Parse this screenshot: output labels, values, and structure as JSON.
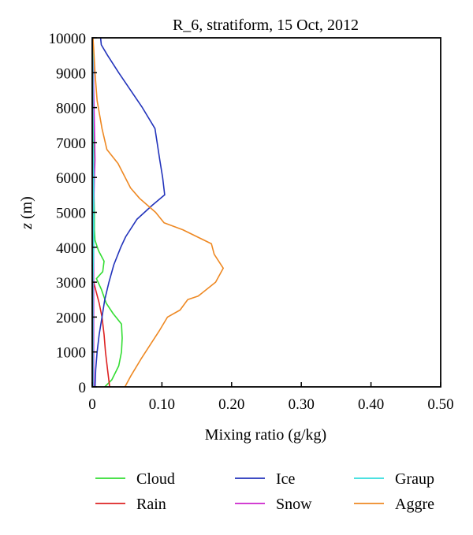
{
  "chart_data": {
    "type": "line",
    "title": "R_6, stratiform, 15 Oct, 2012",
    "xlabel": "Mixing ratio (g/kg)",
    "ylabel_italic": "z",
    "ylabel_rest": " (m)",
    "xlim": [
      0,
      0.5
    ],
    "ylim": [
      0,
      10000
    ],
    "x_ticks": [
      "0",
      "0.10",
      "0.20",
      "0.30",
      "0.40",
      "0.50"
    ],
    "y_ticks": [
      "0",
      "1000",
      "2000",
      "3000",
      "4000",
      "5000",
      "6000",
      "7000",
      "8000",
      "9000",
      "10000"
    ],
    "grid": false,
    "legend_position": "bottom",
    "series": [
      {
        "name": "Cloud",
        "color": "#33dd33",
        "points": [
          [
            0.018,
            0
          ],
          [
            0.028,
            200
          ],
          [
            0.038,
            600
          ],
          [
            0.042,
            1000
          ],
          [
            0.043,
            1400
          ],
          [
            0.042,
            1800
          ],
          [
            0.03,
            2100
          ],
          [
            0.02,
            2400
          ],
          [
            0.013,
            2800
          ],
          [
            0.006,
            3100
          ],
          [
            0.015,
            3300
          ],
          [
            0.017,
            3600
          ],
          [
            0.009,
            3900
          ],
          [
            0.004,
            4200
          ],
          [
            0.003,
            4500
          ],
          [
            0.003,
            5000
          ],
          [
            0.002,
            6000
          ],
          [
            0.002,
            8000
          ],
          [
            0.001,
            10000
          ]
        ]
      },
      {
        "name": "Rain",
        "color": "#dd2222",
        "points": [
          [
            0.025,
            0
          ],
          [
            0.022,
            500
          ],
          [
            0.019,
            1000
          ],
          [
            0.017,
            1500
          ],
          [
            0.014,
            2000
          ],
          [
            0.01,
            2400
          ],
          [
            0.006,
            2700
          ],
          [
            0.002,
            3000
          ],
          [
            0.001,
            3300
          ],
          [
            0.0,
            3500
          ]
        ]
      },
      {
        "name": "Ice",
        "color": "#2233bb",
        "points": [
          [
            0.004,
            0
          ],
          [
            0.005,
            500
          ],
          [
            0.007,
            1000
          ],
          [
            0.01,
            1500
          ],
          [
            0.014,
            2000
          ],
          [
            0.018,
            2500
          ],
          [
            0.024,
            3000
          ],
          [
            0.031,
            3500
          ],
          [
            0.041,
            4000
          ],
          [
            0.048,
            4300
          ],
          [
            0.064,
            4800
          ],
          [
            0.086,
            5200
          ],
          [
            0.104,
            5500
          ],
          [
            0.101,
            6000
          ],
          [
            0.097,
            6500
          ],
          [
            0.09,
            7400
          ],
          [
            0.072,
            8000
          ],
          [
            0.055,
            8500
          ],
          [
            0.038,
            9000
          ],
          [
            0.022,
            9500
          ],
          [
            0.013,
            9800
          ],
          [
            0.012,
            10000
          ]
        ]
      },
      {
        "name": "Snow",
        "color": "#cc22cc",
        "points": [
          [
            0.002,
            0
          ],
          [
            0.002,
            1000
          ],
          [
            0.002,
            2000
          ],
          [
            0.002,
            3000
          ],
          [
            0.002,
            4000
          ],
          [
            0.002,
            5000
          ],
          [
            0.003,
            6000
          ],
          [
            0.004,
            6500
          ],
          [
            0.003,
            7500
          ],
          [
            0.002,
            8500
          ],
          [
            0.001,
            10000
          ]
        ]
      },
      {
        "name": "Graup",
        "color": "#33dddd",
        "points": [
          [
            0.001,
            0
          ],
          [
            0.001,
            1000
          ],
          [
            0.001,
            2000
          ],
          [
            0.001,
            3000
          ],
          [
            0.002,
            4000
          ],
          [
            0.002,
            5000
          ],
          [
            0.002,
            6000
          ],
          [
            0.001,
            7000
          ],
          [
            0.001,
            8000
          ],
          [
            0.001,
            9000
          ],
          [
            0.001,
            10000
          ]
        ]
      },
      {
        "name": "Aggre",
        "color": "#ee8822",
        "points": [
          [
            0.047,
            0
          ],
          [
            0.055,
            300
          ],
          [
            0.07,
            800
          ],
          [
            0.083,
            1200
          ],
          [
            0.096,
            1600
          ],
          [
            0.108,
            2000
          ],
          [
            0.126,
            2200
          ],
          [
            0.137,
            2500
          ],
          [
            0.152,
            2600
          ],
          [
            0.177,
            3000
          ],
          [
            0.188,
            3400
          ],
          [
            0.175,
            3800
          ],
          [
            0.171,
            4100
          ],
          [
            0.13,
            4500
          ],
          [
            0.103,
            4700
          ],
          [
            0.091,
            5000
          ],
          [
            0.068,
            5400
          ],
          [
            0.055,
            5700
          ],
          [
            0.037,
            6400
          ],
          [
            0.021,
            6800
          ],
          [
            0.014,
            7400
          ],
          [
            0.007,
            8200
          ],
          [
            0.004,
            9000
          ],
          [
            0.002,
            9700
          ],
          [
            0.001,
            10000
          ]
        ]
      }
    ]
  }
}
